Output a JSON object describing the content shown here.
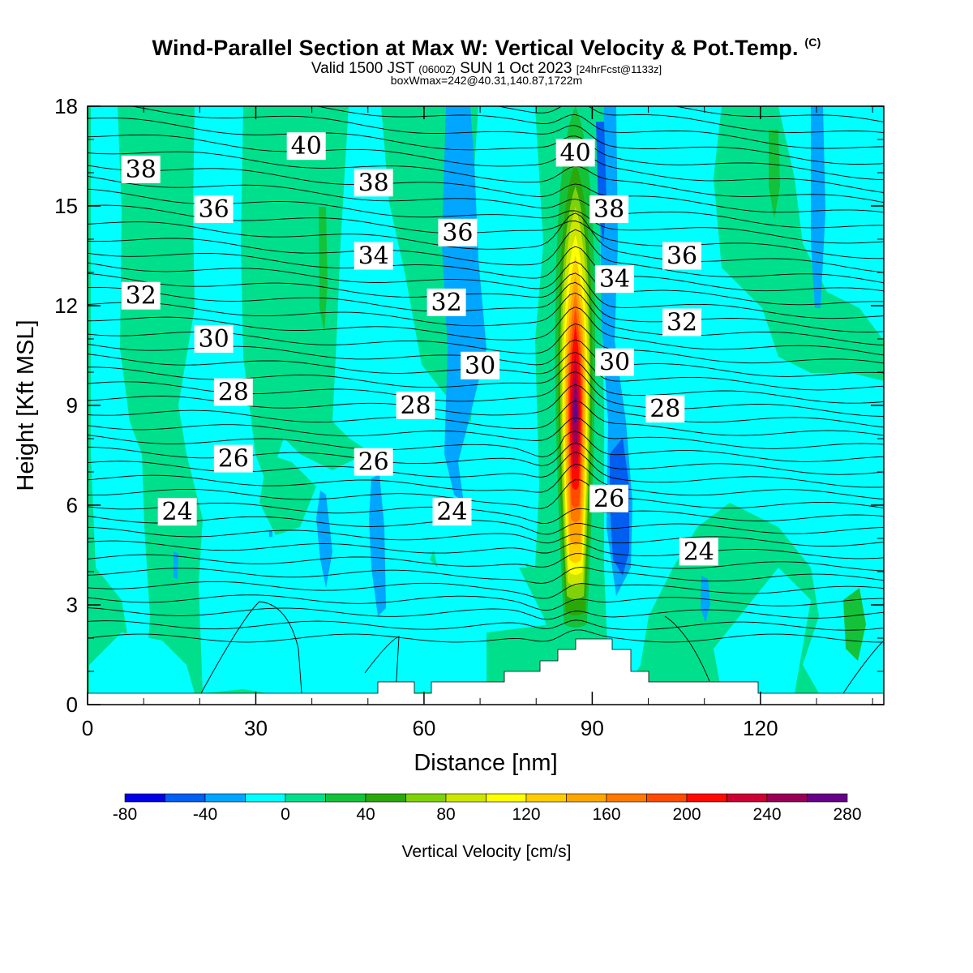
{
  "title": {
    "main": "Wind-Parallel Section at Max W: Vertical Velocity & Pot.Temp.",
    "copyright": "(C)",
    "valid_prefix": "Valid 1500 JST",
    "valid_utc": "(0600Z)",
    "valid_date": "SUN 1 Oct 2023",
    "forecast": "[24hrFcst@1133z]",
    "box": "boxWmax=242@40.31,140.87,1722m"
  },
  "chart_data": {
    "type": "heatmap",
    "xlabel": "Distance [nm]",
    "ylabel": "Height [Kft MSL]",
    "xlim": [
      0,
      142
    ],
    "ylim": [
      0,
      18
    ],
    "xticks": [
      0,
      30,
      60,
      90,
      120
    ],
    "yticks": [
      0,
      3,
      6,
      9,
      12,
      15,
      18
    ],
    "colorbar": {
      "title": "Vertical Velocity [cm/s]",
      "bounds": [
        -80,
        -60,
        -40,
        -20,
        0,
        20,
        40,
        60,
        80,
        100,
        120,
        140,
        160,
        180,
        200,
        220,
        240,
        260,
        280
      ],
      "tick_labels": [
        "-80",
        "-40",
        "0",
        "40",
        "80",
        "120",
        "160",
        "200",
        "240",
        "280"
      ],
      "colors": [
        "#0000e6",
        "#005ef0",
        "#00a6ff",
        "#00ffff",
        "#00e08c",
        "#14c23a",
        "#2aa80a",
        "#7fd20a",
        "#cde600",
        "#ffff00",
        "#ffcc00",
        "#ffa500",
        "#ff7800",
        "#ff4a00",
        "#ff0a00",
        "#cc0033",
        "#990055",
        "#660088"
      ]
    },
    "max_updraft": {
      "x": 87,
      "z": 9,
      "value": 242
    },
    "theta_contours_K": [
      24,
      26,
      28,
      30,
      32,
      34,
      36,
      38,
      40
    ],
    "theta_labels": [
      {
        "text": "38",
        "x": 9.5,
        "z": 16.1
      },
      {
        "text": "36",
        "x": 22.5,
        "z": 14.9
      },
      {
        "text": "32",
        "x": 9.5,
        "z": 12.3
      },
      {
        "text": "30",
        "x": 22.5,
        "z": 11.0
      },
      {
        "text": "28",
        "x": 26,
        "z": 9.4
      },
      {
        "text": "26",
        "x": 26,
        "z": 7.4
      },
      {
        "text": "24",
        "x": 16,
        "z": 5.8
      },
      {
        "text": "40",
        "x": 39,
        "z": 16.8
      },
      {
        "text": "38",
        "x": 51,
        "z": 15.7
      },
      {
        "text": "34",
        "x": 51,
        "z": 13.5
      },
      {
        "text": "36",
        "x": 66,
        "z": 14.2
      },
      {
        "text": "32",
        "x": 64,
        "z": 12.1
      },
      {
        "text": "30",
        "x": 70,
        "z": 10.2
      },
      {
        "text": "28",
        "x": 58.5,
        "z": 9.0
      },
      {
        "text": "26",
        "x": 51,
        "z": 7.3
      },
      {
        "text": "24",
        "x": 65,
        "z": 5.8
      },
      {
        "text": "40",
        "x": 87,
        "z": 16.6
      },
      {
        "text": "38",
        "x": 93,
        "z": 14.9
      },
      {
        "text": "34",
        "x": 94,
        "z": 12.8
      },
      {
        "text": "30",
        "x": 94,
        "z": 10.3
      },
      {
        "text": "26",
        "x": 93,
        "z": 6.2
      },
      {
        "text": "36",
        "x": 106,
        "z": 13.5
      },
      {
        "text": "32",
        "x": 106,
        "z": 11.5
      },
      {
        "text": "28",
        "x": 103,
        "z": 8.9
      },
      {
        "text": "24",
        "x": 109,
        "z": 4.6
      }
    ]
  }
}
